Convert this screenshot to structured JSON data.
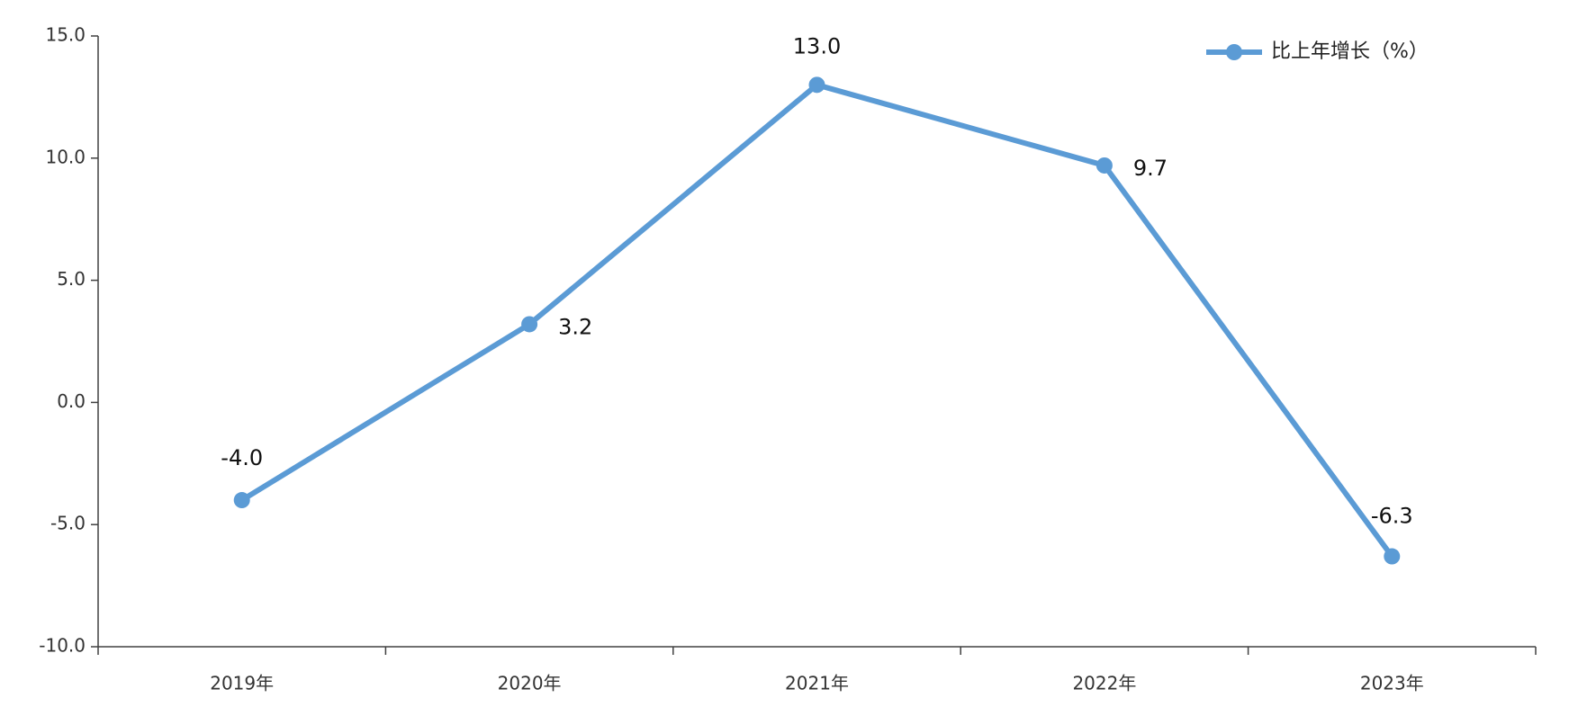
{
  "chart_data": {
    "type": "line",
    "categories": [
      "2019年",
      "2020年",
      "2021年",
      "2022年",
      "2023年"
    ],
    "series": [
      {
        "name": "比上年增长（%）",
        "color": "#5b9bd5",
        "values": [
          -4.0,
          3.2,
          13.0,
          9.7,
          -6.3
        ],
        "value_labels": [
          "-4.0",
          "3.2",
          "13.0",
          "9.7",
          "-6.3"
        ]
      }
    ],
    "ylim": [
      -10,
      15
    ],
    "yticks": [
      {
        "value": -10,
        "label": "-10.0"
      },
      {
        "value": -5,
        "label": "-5.0"
      },
      {
        "value": 0,
        "label": "0.0"
      },
      {
        "value": 5,
        "label": "5.0"
      },
      {
        "value": 10,
        "label": "10.0"
      },
      {
        "value": 15,
        "label": "15.0"
      }
    ],
    "legend": "top-right"
  }
}
